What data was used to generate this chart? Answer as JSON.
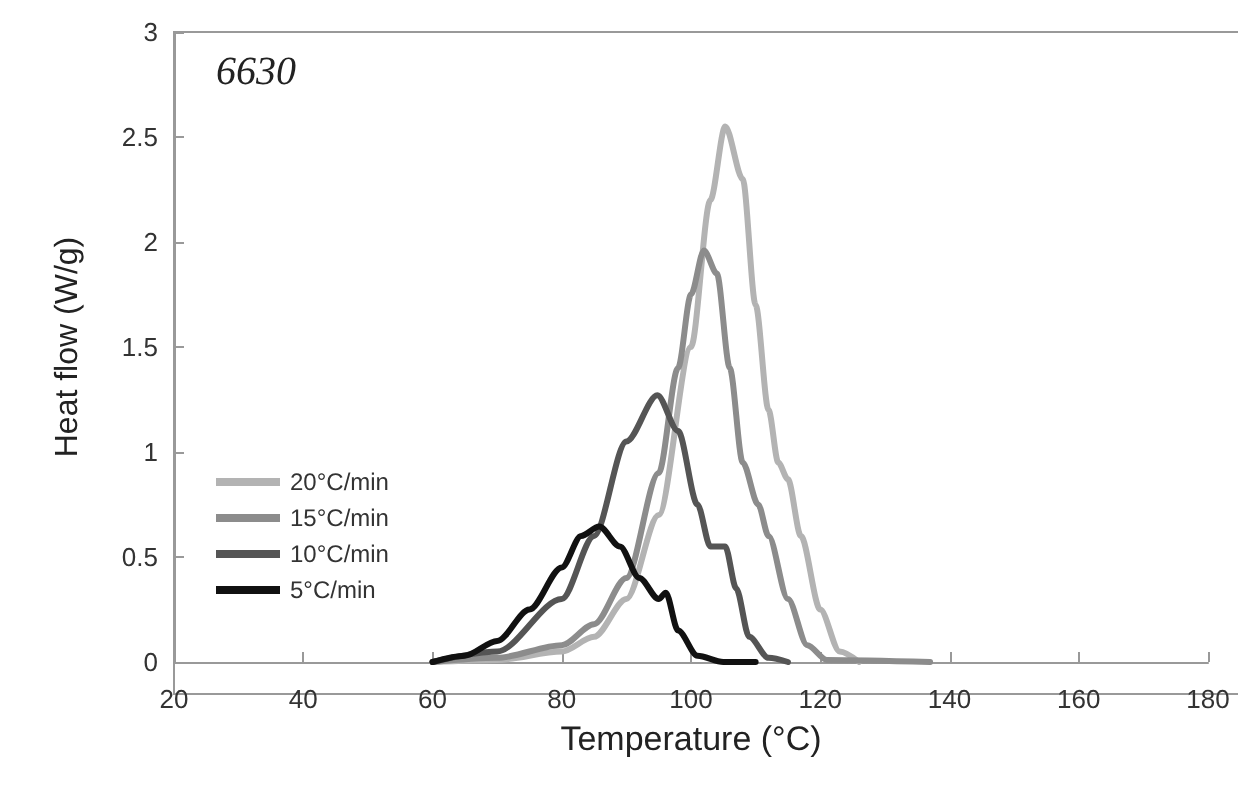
{
  "chart_data": {
    "type": "line",
    "annotations": [
      "6630"
    ],
    "xlabel": "Temperature (°C)",
    "ylabel": "Heat flow (W/g)",
    "xlim": [
      20,
      180
    ],
    "xticks": [
      20,
      40,
      60,
      80,
      100,
      120,
      140,
      160,
      180
    ],
    "ylim": [
      0,
      3
    ],
    "yticks": [
      0,
      0.5,
      1,
      1.5,
      2,
      2.5,
      3
    ],
    "grid": false,
    "legend": "left",
    "marker": "none",
    "line_style": "solid",
    "series": [
      {
        "name": "20°C/min",
        "color": "#b3b3b3",
        "x": [
          60,
          70,
          80,
          85,
          90,
          95,
          100,
          103,
          105.3,
          108,
          110,
          112,
          113.5,
          115,
          117,
          120,
          123,
          126
        ],
        "values": [
          0,
          0.01,
          0.05,
          0.12,
          0.3,
          0.7,
          1.5,
          2.2,
          2.55,
          2.3,
          1.7,
          1.2,
          0.95,
          0.87,
          0.6,
          0.25,
          0.05,
          0
        ]
      },
      {
        "name": "15°C/min",
        "color": "#8c8c8c",
        "x": [
          60,
          70,
          80,
          85,
          90,
          95,
          98,
          100,
          102,
          104,
          106,
          108,
          110.4,
          112,
          115,
          118,
          121,
          137
        ],
        "values": [
          0,
          0.02,
          0.08,
          0.18,
          0.4,
          0.9,
          1.4,
          1.75,
          1.96,
          1.85,
          1.4,
          0.95,
          0.75,
          0.6,
          0.3,
          0.08,
          0.01,
          0
        ]
      },
      {
        "name": "10°C/min",
        "color": "#555555",
        "x": [
          60,
          70,
          80,
          85,
          90,
          94.8,
          98,
          101,
          103,
          105.3,
          107,
          109,
          112,
          115
        ],
        "values": [
          0,
          0.05,
          0.3,
          0.6,
          1.05,
          1.27,
          1.1,
          0.75,
          0.55,
          0.55,
          0.35,
          0.12,
          0.02,
          0
        ]
      },
      {
        "name": "5°C/min",
        "color": "#111111",
        "x": [
          60,
          65,
          70,
          75,
          80,
          83,
          85.8,
          89,
          92,
          95,
          96.1,
          98,
          101,
          105,
          110
        ],
        "values": [
          0,
          0.03,
          0.1,
          0.25,
          0.45,
          0.6,
          0.645,
          0.55,
          0.4,
          0.3,
          0.33,
          0.15,
          0.03,
          0,
          0
        ]
      }
    ]
  }
}
